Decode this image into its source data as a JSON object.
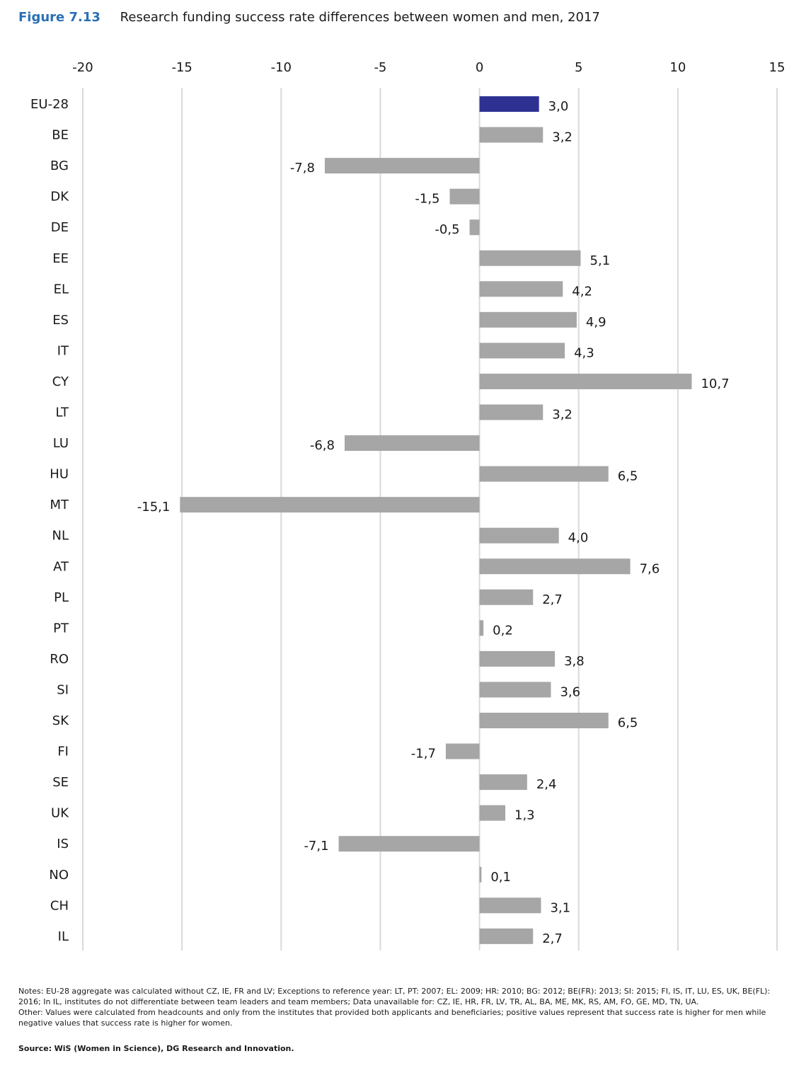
{
  "figure": {
    "number": "Figure 7.13",
    "title": "Research funding success rate differences between women and men, 2017"
  },
  "chart_data": {
    "type": "bar",
    "orientation": "horizontal",
    "xlim": [
      -20,
      15
    ],
    "ticks": [
      -20,
      -15,
      -10,
      -5,
      0,
      5,
      10,
      15
    ],
    "tick_labels": [
      "-20",
      "-15",
      "-10",
      "-5",
      "0",
      "5",
      "10",
      "15"
    ],
    "axis_position": "top",
    "grid": true,
    "categories": [
      "EU-28",
      "BE",
      "BG",
      "DK",
      "DE",
      "EE",
      "EL",
      "ES",
      "IT",
      "CY",
      "LT",
      "LU",
      "HU",
      "MT",
      "NL",
      "AT",
      "PL",
      "PT",
      "RO",
      "SI",
      "SK",
      "FI",
      "SE",
      "UK",
      "IS",
      "NO",
      "CH",
      "IL"
    ],
    "values": [
      3.0,
      3.2,
      -7.8,
      -1.5,
      -0.5,
      5.1,
      4.2,
      4.9,
      4.3,
      10.7,
      3.2,
      -6.8,
      6.5,
      -15.1,
      4.0,
      7.6,
      2.7,
      0.2,
      3.8,
      3.6,
      6.5,
      -1.7,
      2.4,
      1.3,
      -7.1,
      0.1,
      3.1,
      2.7
    ],
    "value_labels": [
      "3,0",
      "3,2",
      "-7,8",
      "-1,5",
      "-0,5",
      "5,1",
      "4,2",
      "4,9",
      "4,3",
      "10,7",
      "3,2",
      "-6,8",
      "6,5",
      "-15,1",
      "4,0",
      "7,6",
      "2,7",
      "0,2",
      "3,8",
      "3,6",
      "6,5",
      "-1,7",
      "2,4",
      "1,3",
      "-7,1",
      "0,1",
      "3,1",
      "2,7"
    ],
    "colors": {
      "highlight": "#2e3192",
      "default": "#a6a6a6",
      "grid": "#d9d9d9"
    },
    "highlight_category": "EU-28"
  },
  "notes": {
    "line1": "Notes: EU-28 aggregate was calculated without CZ, IE, FR and LV; Exceptions to reference year: LT, PT: 2007; EL: 2009; HR: 2010; BG: 2012; BE(FR): 2013; SI: 2015; FI, IS, IT, LU, ES, UK, BE(FL): 2016; In IL, institutes do not differentiate between team leaders and team members; Data unavailable for: CZ, IE, HR, FR, LV, TR, AL, BA, ME, MK, RS, AM, FO, GE, MD, TN, UA.",
    "line2": "Other: Values were calculated from headcounts and only from the institutes that provided both applicants and beneficiaries; positive values represent that success rate is higher for men while negative values that success rate is higher for women."
  },
  "source": {
    "label": "Source:",
    "text": "WiS (Women in Science), DG Research and Innovation."
  }
}
